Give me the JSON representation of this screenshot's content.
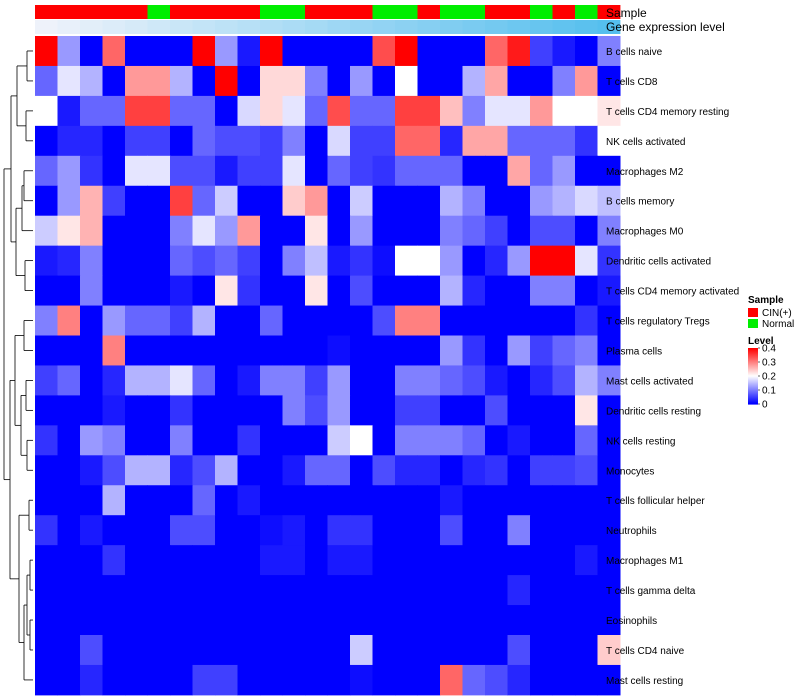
{
  "chart_data": {
    "type": "heatmap",
    "title": "",
    "annotation_rows": [
      {
        "name": "Sample"
      },
      {
        "name": "Gene expression level"
      }
    ],
    "sample_groups": [
      "CIN",
      "CIN",
      "CIN",
      "CIN",
      "CIN",
      "Normal",
      "CIN",
      "CIN",
      "CIN",
      "CIN",
      "Normal",
      "Normal",
      "CIN",
      "CIN",
      "CIN",
      "Normal",
      "Normal",
      "CIN",
      "Normal",
      "Normal",
      "CIN",
      "CIN",
      "Normal",
      "CIN",
      "Normal",
      "CIN"
    ],
    "gene_expression_level": [
      0.0,
      0.04,
      0.08,
      0.12,
      0.16,
      0.2,
      0.24,
      0.28,
      0.32,
      0.36,
      0.4,
      0.44,
      0.48,
      0.52,
      0.56,
      0.6,
      0.64,
      0.68,
      0.72,
      0.76,
      0.8,
      0.84,
      0.88,
      0.92,
      0.96,
      1.0
    ],
    "rows": [
      "B cells naive",
      "T cells CD8",
      "T cells CD4 memory resting",
      "NK cells activated",
      "Macrophages M2",
      "B cells memory",
      "Macrophages M0",
      "Dendritic cells activated",
      "T cells CD4 memory activated",
      "T cells regulatory  Tregs",
      "Plasma cells",
      "Mast cells activated",
      "Dendritic cells resting",
      "NK cells resting",
      "Monocytes",
      "T cells follicular helper",
      "Neutrophils",
      "Macrophages M1",
      "T cells gamma delta",
      "Eosinophils",
      "T cells CD4 naive",
      "Mast cells resting"
    ],
    "values": [
      [
        0.4,
        0.12,
        0.0,
        0.32,
        0.0,
        0.0,
        0.0,
        0.4,
        0.12,
        0.02,
        0.4,
        0.0,
        0.0,
        0.0,
        0.0,
        0.34,
        0.4,
        0.0,
        0.0,
        0.0,
        0.32,
        0.38,
        0.05,
        0.02,
        0.0,
        0.1
      ],
      [
        0.08,
        0.18,
        0.14,
        0.0,
        0.28,
        0.28,
        0.14,
        0.0,
        0.4,
        0.0,
        0.23,
        0.23,
        0.1,
        0.0,
        0.12,
        0.0,
        0.2,
        0.0,
        0.0,
        0.14,
        0.27,
        0.0,
        0.0,
        0.1,
        0.28,
        0.0
      ],
      [
        0.2,
        0.02,
        0.08,
        0.08,
        0.35,
        0.35,
        0.08,
        0.08,
        0.0,
        0.17,
        0.23,
        0.18,
        0.08,
        0.34,
        0.08,
        0.08,
        0.35,
        0.35,
        0.25,
        0.1,
        0.18,
        0.18,
        0.28,
        0.2,
        0.2,
        0.22
      ],
      [
        0.0,
        0.03,
        0.03,
        0.0,
        0.05,
        0.05,
        0.0,
        0.08,
        0.06,
        0.06,
        0.05,
        0.1,
        0.0,
        0.17,
        0.05,
        0.05,
        0.32,
        0.32,
        0.03,
        0.27,
        0.27,
        0.08,
        0.08,
        0.08,
        0.04,
        0.2
      ],
      [
        0.08,
        0.12,
        0.04,
        0.0,
        0.18,
        0.18,
        0.06,
        0.06,
        0.02,
        0.05,
        0.05,
        0.18,
        0.0,
        0.08,
        0.05,
        0.04,
        0.08,
        0.08,
        0.08,
        0.0,
        0.0,
        0.27,
        0.08,
        0.12,
        0.0,
        0.0
      ],
      [
        0.0,
        0.12,
        0.26,
        0.05,
        0.0,
        0.0,
        0.35,
        0.08,
        0.16,
        0.0,
        0.0,
        0.24,
        0.28,
        0.0,
        0.16,
        0.0,
        0.0,
        0.0,
        0.14,
        0.1,
        0.0,
        0.0,
        0.12,
        0.14,
        0.17,
        0.15
      ],
      [
        0.16,
        0.22,
        0.26,
        0.0,
        0.0,
        0.0,
        0.1,
        0.18,
        0.12,
        0.28,
        0.0,
        0.0,
        0.22,
        0.0,
        0.12,
        0.0,
        0.0,
        0.0,
        0.1,
        0.08,
        0.05,
        0.0,
        0.06,
        0.06,
        0.0,
        0.1
      ],
      [
        0.02,
        0.03,
        0.1,
        0.0,
        0.0,
        0.0,
        0.08,
        0.06,
        0.08,
        0.05,
        0.0,
        0.1,
        0.15,
        0.02,
        0.04,
        0.01,
        0.2,
        0.2,
        0.12,
        0.0,
        0.03,
        0.12,
        0.4,
        0.4,
        0.18,
        0.04
      ],
      [
        0.0,
        0.0,
        0.1,
        0.0,
        0.0,
        0.0,
        0.02,
        0.0,
        0.22,
        0.04,
        0.0,
        0.0,
        0.22,
        0.0,
        0.06,
        0.0,
        0.0,
        0.0,
        0.14,
        0.03,
        0.0,
        0.0,
        0.1,
        0.1,
        0.0,
        0.02
      ],
      [
        0.1,
        0.3,
        0.0,
        0.12,
        0.08,
        0.08,
        0.05,
        0.14,
        0.0,
        0.0,
        0.08,
        0.0,
        0.0,
        0.0,
        0.0,
        0.06,
        0.3,
        0.3,
        0.0,
        0.0,
        0.0,
        0.0,
        0.0,
        0.0,
        0.04,
        0.0
      ],
      [
        0.0,
        0.0,
        0.0,
        0.3,
        0.0,
        0.0,
        0.0,
        0.0,
        0.0,
        0.0,
        0.0,
        0.0,
        0.0,
        0.01,
        0.0,
        0.0,
        0.0,
        0.0,
        0.12,
        0.04,
        0.0,
        0.12,
        0.05,
        0.08,
        0.1,
        0.0
      ],
      [
        0.05,
        0.08,
        0.0,
        0.03,
        0.14,
        0.14,
        0.18,
        0.08,
        0.0,
        0.02,
        0.1,
        0.1,
        0.05,
        0.12,
        0.0,
        0.0,
        0.1,
        0.1,
        0.08,
        0.06,
        0.02,
        0.0,
        0.03,
        0.06,
        0.14,
        0.1
      ],
      [
        0.0,
        0.0,
        0.0,
        0.02,
        0.0,
        0.0,
        0.04,
        0.0,
        0.0,
        0.0,
        0.0,
        0.1,
        0.06,
        0.12,
        0.0,
        0.0,
        0.05,
        0.05,
        0.0,
        0.0,
        0.06,
        0.0,
        0.0,
        0.0,
        0.22,
        0.0
      ],
      [
        0.04,
        0.0,
        0.12,
        0.1,
        0.0,
        0.0,
        0.1,
        0.0,
        0.0,
        0.04,
        0.0,
        0.0,
        0.0,
        0.16,
        0.2,
        0.0,
        0.1,
        0.1,
        0.1,
        0.08,
        0.0,
        0.02,
        0.0,
        0.0,
        0.08,
        0.0
      ],
      [
        0.0,
        0.0,
        0.02,
        0.06,
        0.14,
        0.14,
        0.03,
        0.06,
        0.14,
        0.0,
        0.0,
        0.02,
        0.08,
        0.08,
        0.0,
        0.06,
        0.03,
        0.03,
        0.0,
        0.03,
        0.04,
        0.0,
        0.05,
        0.05,
        0.06,
        0.0
      ],
      [
        0.0,
        0.0,
        0.0,
        0.14,
        0.0,
        0.0,
        0.0,
        0.08,
        0.0,
        0.02,
        0.0,
        0.0,
        0.0,
        0.0,
        0.0,
        0.0,
        0.0,
        0.0,
        0.02,
        0.0,
        0.0,
        0.0,
        0.0,
        0.0,
        0.0,
        0.0
      ],
      [
        0.04,
        0.0,
        0.02,
        0.0,
        0.0,
        0.0,
        0.06,
        0.06,
        0.0,
        0.0,
        0.01,
        0.02,
        0.0,
        0.04,
        0.04,
        0.0,
        0.0,
        0.0,
        0.06,
        0.0,
        0.0,
        0.1,
        0.0,
        0.0,
        0.0,
        0.0
      ],
      [
        0.0,
        0.0,
        0.0,
        0.04,
        0.0,
        0.0,
        0.0,
        0.0,
        0.0,
        0.0,
        0.02,
        0.02,
        0.0,
        0.02,
        0.02,
        0.0,
        0.0,
        0.0,
        0.0,
        0.0,
        0.0,
        0.0,
        0.0,
        0.0,
        0.02,
        0.0
      ],
      [
        0.0,
        0.0,
        0.0,
        0.0,
        0.0,
        0.0,
        0.0,
        0.0,
        0.0,
        0.0,
        0.0,
        0.0,
        0.0,
        0.0,
        0.0,
        0.0,
        0.0,
        0.0,
        0.0,
        0.0,
        0.0,
        0.03,
        0.0,
        0.0,
        0.0,
        0.0
      ],
      [
        0.0,
        0.0,
        0.0,
        0.0,
        0.0,
        0.0,
        0.0,
        0.0,
        0.0,
        0.0,
        0.0,
        0.0,
        0.0,
        0.0,
        0.0,
        0.0,
        0.0,
        0.0,
        0.0,
        0.0,
        0.0,
        0.0,
        0.0,
        0.0,
        0.0,
        0.0
      ],
      [
        0.0,
        0.0,
        0.06,
        0.0,
        0.0,
        0.0,
        0.0,
        0.0,
        0.0,
        0.0,
        0.0,
        0.0,
        0.0,
        0.0,
        0.16,
        0.0,
        0.0,
        0.0,
        0.0,
        0.0,
        0.0,
        0.06,
        0.0,
        0.0,
        0.0,
        0.24
      ],
      [
        0.0,
        0.0,
        0.03,
        0.0,
        0.0,
        0.0,
        0.0,
        0.05,
        0.05,
        0.0,
        0.0,
        0.0,
        0.0,
        0.0,
        0.01,
        0.0,
        0.0,
        0.0,
        0.32,
        0.08,
        0.06,
        0.03,
        0.0,
        0.0,
        0.0,
        0.0
      ]
    ],
    "color_scale": {
      "min": 0,
      "max": 0.4,
      "colors": [
        "#0000ff",
        "#ffffff",
        "#ff0000"
      ]
    },
    "legend": {
      "sample_title": "Sample",
      "sample_entries": [
        {
          "label": "CIN(+)",
          "color": "#ff0000"
        },
        {
          "label": "Normal",
          "color": "#00ee00"
        }
      ],
      "level_title": "Level",
      "level_ticks": [
        0.4,
        0.3,
        0.2,
        0.1,
        0
      ],
      "placement": "right"
    },
    "expression_annotation_color": "#55bfee",
    "dendrogram_side": "left"
  }
}
